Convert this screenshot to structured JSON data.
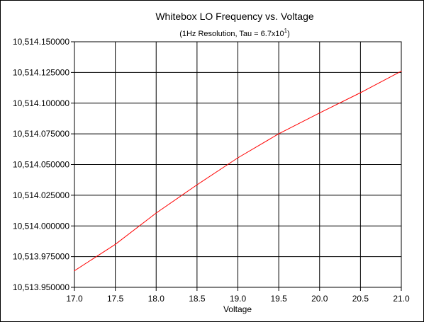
{
  "chart_data": {
    "type": "line",
    "title": "Whitebox LO Frequency vs. Voltage",
    "subtitle_prefix": "(1Hz Resolution, Tau = 6.7x10",
    "subtitle_sup": "1",
    "subtitle_suffix": ")",
    "xlabel": "Voltage",
    "ylabel": "",
    "xlim": [
      17.0,
      21.0
    ],
    "ylim": [
      10513.95,
      10514.15
    ],
    "x_ticks": [
      "17.0",
      "17.5",
      "18.0",
      "18.5",
      "19.0",
      "19.5",
      "20.0",
      "20.5",
      "21.0"
    ],
    "y_ticks": [
      "10,514.150000",
      "10,514.125000",
      "10,514.100000",
      "10,514.075000",
      "10,514.050000",
      "10,514.025000",
      "10,514.000000",
      "10,513.975000",
      "10,513.950000"
    ],
    "x_tick_values": [
      17.0,
      17.5,
      18.0,
      18.5,
      19.0,
      19.5,
      20.0,
      20.5,
      21.0
    ],
    "y_tick_values": [
      10514.15,
      10514.125,
      10514.1,
      10514.075,
      10514.05,
      10514.025,
      10514.0,
      10513.975,
      10513.95
    ],
    "grid": true,
    "legend": "none",
    "plot_background": "#ffffff",
    "series": [
      {
        "color": "#ff0000",
        "x": [
          17.0,
          17.5,
          18.0,
          18.5,
          19.0,
          19.5,
          20.0,
          20.5,
          21.0
        ],
        "y": [
          10513.9635,
          10513.985,
          10514.0105,
          10514.0335,
          10514.0555,
          10514.075,
          10514.092,
          10514.1085,
          10514.126
        ]
      }
    ]
  }
}
